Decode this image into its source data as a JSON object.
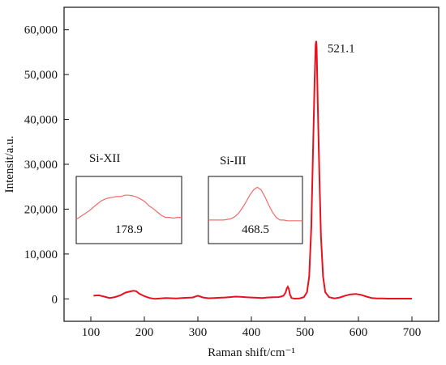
{
  "chart_data": {
    "type": "line",
    "xlabel": "Raman shift/cm⁻¹",
    "ylabel": "Intensit/a.u.",
    "xlim": [
      50,
      750
    ],
    "ylim": [
      -5000,
      65000
    ],
    "x_ticks": [
      100,
      200,
      300,
      400,
      500,
      600,
      700
    ],
    "y_ticks": [
      0,
      10000,
      20000,
      30000,
      40000,
      50000,
      60000
    ],
    "y_tick_labels": [
      "0",
      "10,000",
      "20,000",
      "30,000",
      "40,000",
      "50,000",
      "60,000"
    ],
    "grid": false,
    "series": [
      {
        "color": "#e8121f",
        "x": [
          105,
          115,
          125,
          135,
          145,
          155,
          165,
          175,
          180,
          185,
          190,
          200,
          210,
          220,
          230,
          240,
          250,
          260,
          270,
          280,
          290,
          300,
          305,
          310,
          320,
          330,
          340,
          350,
          360,
          370,
          380,
          390,
          400,
          410,
          420,
          430,
          440,
          450,
          455,
          460,
          464,
          466,
          468,
          470,
          472,
          475,
          478,
          482,
          490,
          498,
          504,
          508,
          512,
          515,
          518,
          520,
          521,
          522,
          524,
          527,
          530,
          534,
          538,
          545,
          555,
          565,
          575,
          585,
          595,
          605,
          615,
          625,
          635,
          645,
          655,
          665,
          675,
          685,
          700
        ],
        "y": [
          700,
          800,
          500,
          200,
          400,
          800,
          1400,
          1700,
          1800,
          1700,
          1200,
          600,
          200,
          0,
          100,
          200,
          150,
          100,
          200,
          250,
          300,
          700,
          500,
          300,
          150,
          200,
          250,
          300,
          400,
          500,
          450,
          350,
          300,
          250,
          200,
          300,
          350,
          400,
          500,
          700,
          1400,
          2300,
          2700,
          2200,
          1000,
          200,
          100,
          50,
          100,
          400,
          1500,
          5000,
          16000,
          32000,
          48000,
          56500,
          57500,
          56000,
          44000,
          28000,
          14000,
          5000,
          1500,
          400,
          100,
          300,
          700,
          1000,
          1100,
          900,
          500,
          200,
          100,
          80,
          50,
          50,
          50,
          50,
          50
        ]
      }
    ],
    "annotations": [
      {
        "text": "521.1",
        "x": 521.1,
        "y": 57500
      }
    ],
    "insets": [
      {
        "label": "Si-XII",
        "value": "178.9",
        "curve": [
          0.36,
          0.4,
          0.44,
          0.48,
          0.53,
          0.58,
          0.63,
          0.66,
          0.68,
          0.69,
          0.7,
          0.7,
          0.72,
          0.72,
          0.71,
          0.69,
          0.66,
          0.62,
          0.56,
          0.52,
          0.47,
          0.42,
          0.39,
          0.39,
          0.38,
          0.39,
          0.39
        ]
      },
      {
        "label": "Si-III",
        "value": "468.5",
        "curve": [
          0.35,
          0.35,
          0.35,
          0.35,
          0.35,
          0.36,
          0.37,
          0.4,
          0.45,
          0.53,
          0.62,
          0.72,
          0.8,
          0.84,
          0.8,
          0.7,
          0.58,
          0.47,
          0.39,
          0.35,
          0.35,
          0.34,
          0.34,
          0.34,
          0.34,
          0.34
        ]
      }
    ]
  }
}
